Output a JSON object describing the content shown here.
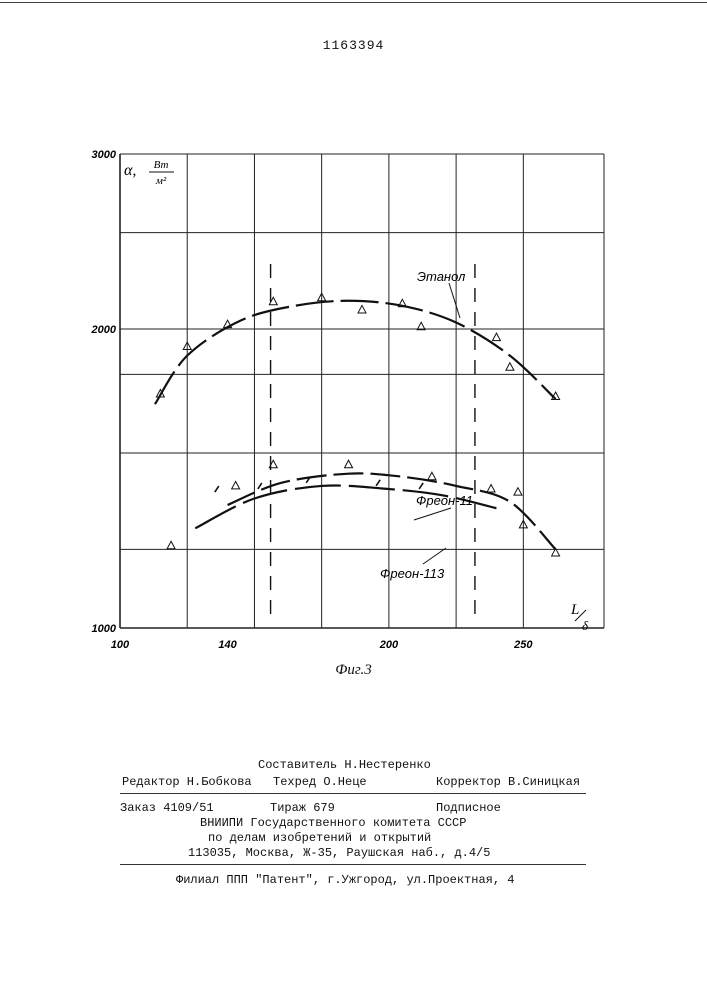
{
  "patent_number": "1163394",
  "figure_caption": "Фиг.3",
  "chart_data": {
    "type": "scatter",
    "title": "",
    "ylabel_symbol": "α,",
    "ylabel_unit_num": "Вт",
    "ylabel_unit_den": "м²",
    "xlabel_num": "L",
    "xlabel_den": "δ",
    "xlim": [
      100,
      280
    ],
    "ylim": [
      1000,
      3000
    ],
    "y_scale": "log",
    "grid": true,
    "x_ticks": [
      {
        "v": 100,
        "t": "100"
      },
      {
        "v": 140,
        "t": "140"
      },
      {
        "v": 200,
        "t": "200"
      },
      {
        "v": 250,
        "t": "250"
      }
    ],
    "y_ticks": [
      {
        "v": 1000,
        "t": "1000"
      },
      {
        "v": 2000,
        "t": "2000"
      },
      {
        "v": 3000,
        "t": "3000"
      }
    ],
    "x_grid": [
      100,
      125,
      150,
      175,
      200,
      225,
      250,
      280
    ],
    "y_grid": [
      1000,
      1200,
      1500,
      1800,
      2000,
      2500,
      3000
    ],
    "vlines_dashed": [
      156,
      232
    ],
    "series": [
      {
        "name": "Этанол",
        "marker": "triangle",
        "points": [
          [
            115,
            1720
          ],
          [
            125,
            1920
          ],
          [
            140,
            2020
          ],
          [
            157,
            2130
          ],
          [
            175,
            2150
          ],
          [
            190,
            2090
          ],
          [
            205,
            2120
          ],
          [
            212,
            2010
          ],
          [
            240,
            1960
          ],
          [
            245,
            1830
          ],
          [
            262,
            1710
          ]
        ],
        "curve": [
          [
            113,
            1680
          ],
          [
            125,
            1880
          ],
          [
            145,
            2040
          ],
          [
            165,
            2110
          ],
          [
            185,
            2135
          ],
          [
            205,
            2110
          ],
          [
            225,
            2030
          ],
          [
            245,
            1880
          ],
          [
            262,
            1700
          ]
        ]
      },
      {
        "name": "Фреон-11",
        "marker": "triangle",
        "points": [
          [
            119,
            1210
          ],
          [
            143,
            1390
          ],
          [
            157,
            1460
          ],
          [
            185,
            1460
          ],
          [
            216,
            1420
          ],
          [
            238,
            1380
          ],
          [
            248,
            1370
          ],
          [
            250,
            1270
          ],
          [
            262,
            1190
          ]
        ],
        "curve": [
          [
            140,
            1330
          ],
          [
            160,
            1400
          ],
          [
            185,
            1430
          ],
          [
            205,
            1420
          ],
          [
            225,
            1390
          ],
          [
            245,
            1340
          ],
          [
            262,
            1200
          ]
        ]
      },
      {
        "name": "Фреон-113",
        "marker": "dash",
        "points": [
          [
            136,
            1380
          ],
          [
            152,
            1390
          ],
          [
            170,
            1410
          ],
          [
            196,
            1400
          ],
          [
            212,
            1390
          ]
        ],
        "curve": [
          [
            128,
            1260
          ],
          [
            150,
            1350
          ],
          [
            175,
            1390
          ],
          [
            200,
            1380
          ],
          [
            220,
            1360
          ],
          [
            240,
            1320
          ]
        ]
      }
    ]
  },
  "imprint": {
    "compiler": "Составитель Н.Нестеренко",
    "editor": "Редактор Н.Бобкова",
    "tech_editor": "Техред О.Неце",
    "corrector": "Корректор В.Синицкая",
    "order": "Заказ 4109/51",
    "circulation": "Тираж 679",
    "subscription": "Подписное",
    "org1": "ВНИИПИ Государственного комитета СССР",
    "org2": "по делам изобретений и открытий",
    "address": "113035, Москва, Ж-35, Раушская наб., д.4/5",
    "branch": "Филиал ППП \"Патент\", г.Ужгород, ул.Проектная, 4"
  }
}
